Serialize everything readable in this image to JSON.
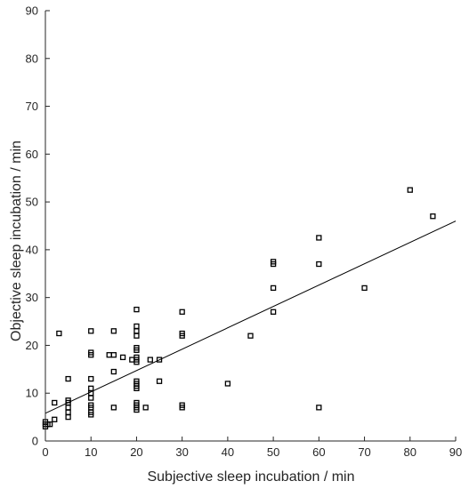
{
  "chart_data": {
    "type": "scatter",
    "title": "",
    "xlabel": "Subjective sleep incubation / min",
    "ylabel": "Objective sleep incubation / min",
    "xlim": [
      0,
      90
    ],
    "ylim": [
      0,
      90
    ],
    "xticks": [
      0,
      10,
      20,
      30,
      40,
      50,
      60,
      70,
      80,
      90
    ],
    "yticks": [
      0,
      10,
      20,
      30,
      40,
      50,
      60,
      70,
      80,
      90
    ],
    "grid": false,
    "legend": "none",
    "marker": "open-square",
    "colors": {
      "marker": "#000000",
      "line": "#000000",
      "axis": "#262626"
    },
    "series": [
      {
        "points": [
          [
            0,
            3
          ],
          [
            0,
            3.5
          ],
          [
            0,
            4
          ],
          [
            0.5,
            3.5
          ],
          [
            1,
            3.5
          ],
          [
            2,
            4.5
          ],
          [
            2,
            8
          ],
          [
            3,
            22.5
          ],
          [
            5,
            5
          ],
          [
            5,
            6
          ],
          [
            5,
            7
          ],
          [
            5,
            8
          ],
          [
            5,
            8.5
          ],
          [
            5,
            13
          ],
          [
            10,
            5.5
          ],
          [
            10,
            6
          ],
          [
            10,
            7
          ],
          [
            10,
            7.5
          ],
          [
            10,
            9
          ],
          [
            10,
            10
          ],
          [
            10,
            11
          ],
          [
            10,
            13
          ],
          [
            10,
            18
          ],
          [
            10,
            18.5
          ],
          [
            10,
            23
          ],
          [
            14,
            18
          ],
          [
            15,
            7
          ],
          [
            15,
            14.5
          ],
          [
            15,
            18
          ],
          [
            15,
            23
          ],
          [
            17,
            17.5
          ],
          [
            19,
            17
          ],
          [
            20,
            6.5
          ],
          [
            20,
            7
          ],
          [
            20,
            7.5
          ],
          [
            20,
            8
          ],
          [
            20,
            11
          ],
          [
            20,
            11.5
          ],
          [
            20,
            12
          ],
          [
            20,
            12.5
          ],
          [
            20,
            16.5
          ],
          [
            20,
            17
          ],
          [
            20,
            17.5
          ],
          [
            20,
            19
          ],
          [
            20,
            19.5
          ],
          [
            20,
            22
          ],
          [
            20,
            23
          ],
          [
            20,
            24
          ],
          [
            20,
            27.5
          ],
          [
            22,
            7
          ],
          [
            23,
            17
          ],
          [
            25,
            12.5
          ],
          [
            25,
            17
          ],
          [
            30,
            7
          ],
          [
            30,
            7.5
          ],
          [
            30,
            22
          ],
          [
            30,
            22.5
          ],
          [
            30,
            27
          ],
          [
            40,
            12
          ],
          [
            45,
            22
          ],
          [
            50,
            27
          ],
          [
            50,
            32
          ],
          [
            50,
            37
          ],
          [
            50,
            37.5
          ],
          [
            60,
            7
          ],
          [
            60,
            37
          ],
          [
            60,
            42.5
          ],
          [
            70,
            32
          ],
          [
            80,
            52.5
          ],
          [
            85,
            47
          ]
        ]
      }
    ],
    "fit_line": {
      "x": [
        0,
        90
      ],
      "y": [
        5.8,
        46
      ]
    }
  }
}
